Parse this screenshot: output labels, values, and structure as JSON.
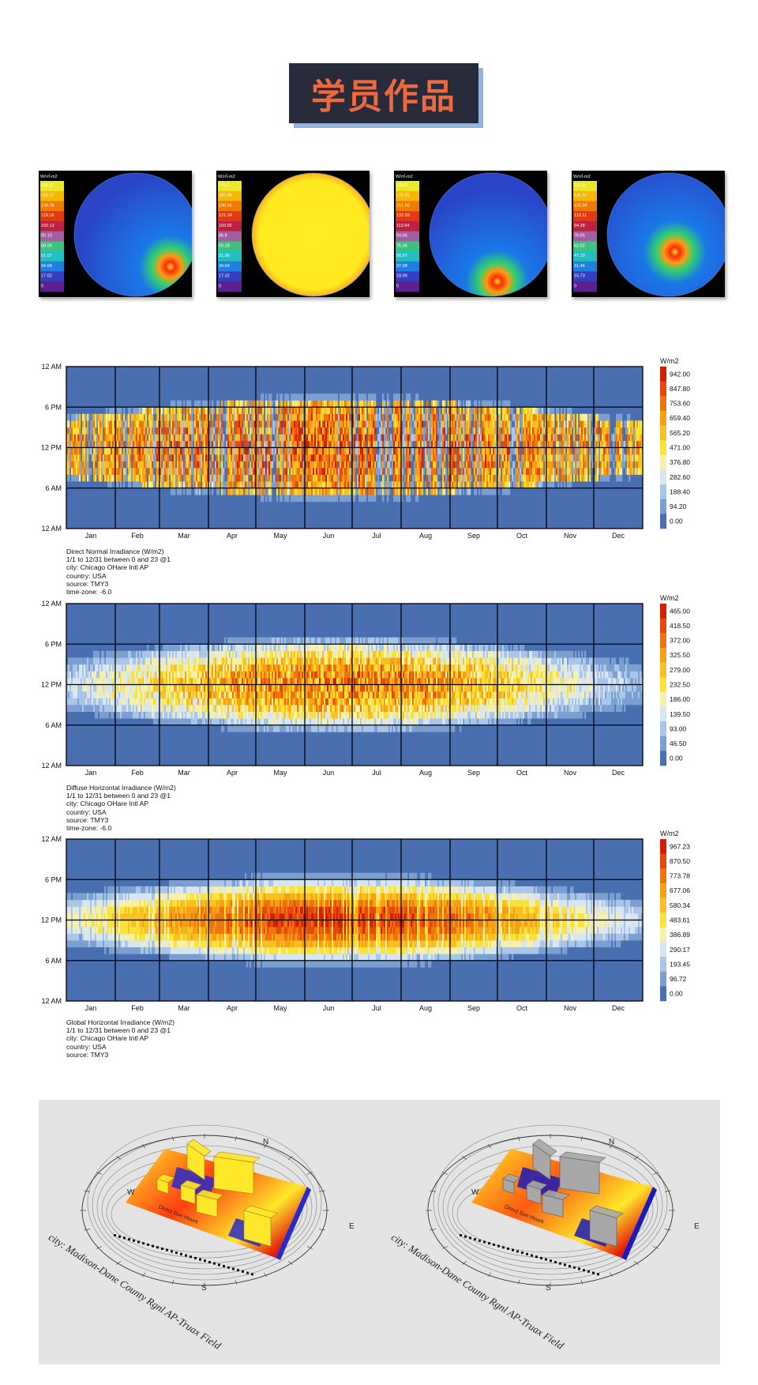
{
  "page_title": "学员作品",
  "sky_thumbnails": [
    {
      "unit": "W/㎡-m2",
      "scale": [
        "170.2",
        "153.17",
        "136.36",
        "119.16",
        "102.12",
        "85.10",
        "68.09",
        "51.07",
        "34.04",
        "17.02",
        "0"
      ],
      "colors": {
        "outer": "#2a45c8",
        "mid": "#1a78e8",
        "hot": "#ff2a10",
        "core": "#ffe41a"
      }
    },
    {
      "unit": "W/㎡-m2",
      "scale": [
        "173.2",
        "155.88",
        "138.56",
        "121.24",
        "103.92",
        "86.6",
        "69.28",
        "51.96",
        "34.64",
        "17.32",
        "0"
      ],
      "colors": {
        "outer": "#ffd01a",
        "mid": "#ffea20",
        "hot": "#ff3b1a",
        "core": "#ffec22"
      }
    },
    {
      "unit": "W/㎡-m2",
      "scale": [
        "189.9",
        "170.91",
        "151.92",
        "132.93",
        "113.94",
        "94.95",
        "75.96",
        "56.97",
        "37.98",
        "18.99",
        "0"
      ],
      "colors": {
        "outer": "#2a45c8",
        "mid": "#1a78e8",
        "hot": "#ff2a10",
        "core": "#ffe41a"
      }
    },
    {
      "unit": "W/㎡-m2",
      "scale": [
        "157.3",
        "141.57",
        "125.84",
        "110.11",
        "94.38",
        "78.65",
        "62.92",
        "47.19",
        "31.46",
        "15.73",
        "0"
      ],
      "colors": {
        "outer": "#2a45c8",
        "mid": "#1a78e8",
        "hot": "#ff2a10",
        "core": "#ffe41a"
      }
    }
  ],
  "chart_data": [
    {
      "type": "heatmap",
      "title": "Direct Normal Irradiance (W/m2)",
      "meta": [
        "1/1 to 12/31 between 0 and 23 @1",
        "city: Chicago OHare Intl AP",
        "country: USA",
        "source: TMY3",
        "time-zone: -6.0"
      ],
      "x_categories": [
        "Jan",
        "Feb",
        "Mar",
        "Apr",
        "May",
        "Jun",
        "Jul",
        "Aug",
        "Sep",
        "Oct",
        "Nov",
        "Dec"
      ],
      "y_ticks": [
        "12 AM",
        "6 PM",
        "12 PM",
        "6 AM",
        "12 AM"
      ],
      "unit": "W/m2",
      "legend_values": [
        "942.00",
        "847.80",
        "753.60",
        "659.40",
        "565.20",
        "471.00",
        "376.80",
        "282.60",
        "188.40",
        "94.20",
        "0.00"
      ],
      "vmax": 942,
      "seed": 11,
      "pattern": "direct"
    },
    {
      "type": "heatmap",
      "title": "Diffuse Horizontal Irradiance (W/m2)",
      "meta": [
        "1/1 to 12/31 between 0 and 23 @1",
        "city: Chicago OHare Intl AP",
        "country: USA",
        "source: TMY3",
        "time-zone: -6.0"
      ],
      "x_categories": [
        "Jan",
        "Feb",
        "Mar",
        "Apr",
        "May",
        "Jun",
        "Jul",
        "Aug",
        "Sep",
        "Oct",
        "Nov",
        "Dec"
      ],
      "y_ticks": [
        "12 AM",
        "6 PM",
        "12 PM",
        "6 AM",
        "12 AM"
      ],
      "unit": "W/m2",
      "legend_values": [
        "465.00",
        "418.50",
        "372.00",
        "325.50",
        "279.00",
        "232.50",
        "186.00",
        "139.50",
        "93.00",
        "46.50",
        "0.00"
      ],
      "vmax": 465,
      "seed": 23,
      "pattern": "diffuse"
    },
    {
      "type": "heatmap",
      "title": "Global Horizontal Irradiance (W/m2)",
      "meta": [
        "1/1 to 12/31 between 0 and 23 @1",
        "city: Chicago OHare Intl AP",
        "country: USA",
        "source: TMY3"
      ],
      "x_categories": [
        "Jan",
        "Feb",
        "Mar",
        "Apr",
        "May",
        "Jun",
        "Jul",
        "Aug",
        "Sep",
        "Oct",
        "Nov",
        "Dec"
      ],
      "y_ticks": [
        "12 AM",
        "6 PM",
        "12 PM",
        "6 AM",
        "12 AM"
      ],
      "unit": "W/m2",
      "legend_values": [
        "967.23",
        "870.50",
        "773.78",
        "677.06",
        "580.34",
        "483.61",
        "386.89",
        "290.17",
        "193.45",
        "96.72",
        "0.00"
      ],
      "vmax": 967,
      "seed": 37,
      "pattern": "global"
    }
  ],
  "colormap": [
    "#4a6fb0",
    "#7a9fd0",
    "#a9c6e8",
    "#d8e6f2",
    "#f7f0a8",
    "#f9e23a",
    "#f8c020",
    "#f6a015",
    "#ee7410",
    "#e54a0c",
    "#d41e06"
  ],
  "site_analysis": [
    {
      "city_label": "city: Madison-Dane County Rgnl AP-Truax Field",
      "compass": [
        "N",
        "E",
        "S",
        "W"
      ],
      "inner_label": "Direct Sun Hours"
    },
    {
      "city_label": "city: Madison-Dane County Rgnl AP-Truax Field",
      "compass": [
        "N",
        "E",
        "S",
        "W"
      ],
      "inner_label": "Direct Sun Hours"
    }
  ]
}
